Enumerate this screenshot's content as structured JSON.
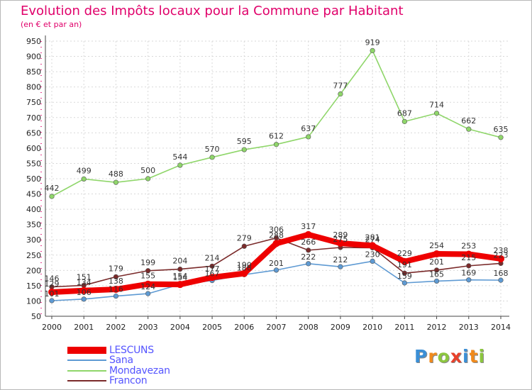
{
  "title": "Evolution des Impôts locaux pour la Commune par Habitant",
  "subtitle": "(en € et par an)",
  "logo": {
    "letters": [
      "P",
      "r",
      "o",
      "x",
      "i",
      "t",
      "i"
    ],
    "colors": [
      "#3b8fd6",
      "#f08a1c",
      "#8cc63f",
      "#e8402a",
      "#3b8fd6",
      "#f08a1c",
      "#8cc63f"
    ]
  },
  "chart_data": {
    "type": "line",
    "x": [
      2000,
      2001,
      2002,
      2003,
      2004,
      2005,
      2006,
      2007,
      2008,
      2009,
      2010,
      2011,
      2012,
      2013,
      2014
    ],
    "ylim": [
      50,
      950
    ],
    "yticks": [
      50,
      100,
      150,
      200,
      250,
      300,
      350,
      400,
      450,
      500,
      550,
      600,
      650,
      700,
      750,
      800,
      850,
      900,
      950
    ],
    "grid": true,
    "legend_position": "bottom-left",
    "series": [
      {
        "name": "LESCUNS",
        "color": "#ee0000",
        "values": [
          129,
          134,
          138,
          155,
          154,
          177,
          190,
          288,
          317,
          289,
          281,
          229,
          254,
          253,
          238
        ]
      },
      {
        "name": "Sana",
        "color": "#5e9ad3",
        "values": [
          101,
          106,
          116,
          124,
          154,
          167,
          186,
          201,
          222,
          212,
          230,
          159,
          165,
          169,
          168
        ]
      },
      {
        "name": "Mondavezan",
        "color": "#8fd66a",
        "values": [
          442,
          499,
          488,
          500,
          544,
          570,
          595,
          612,
          637,
          777,
          919,
          687,
          714,
          662,
          635
        ]
      },
      {
        "name": "Francon",
        "color": "#7a2a2a",
        "values": [
          146,
          151,
          179,
          199,
          204,
          214,
          279,
          306,
          266,
          275,
          274,
          191,
          201,
          215,
          223
        ]
      }
    ]
  }
}
